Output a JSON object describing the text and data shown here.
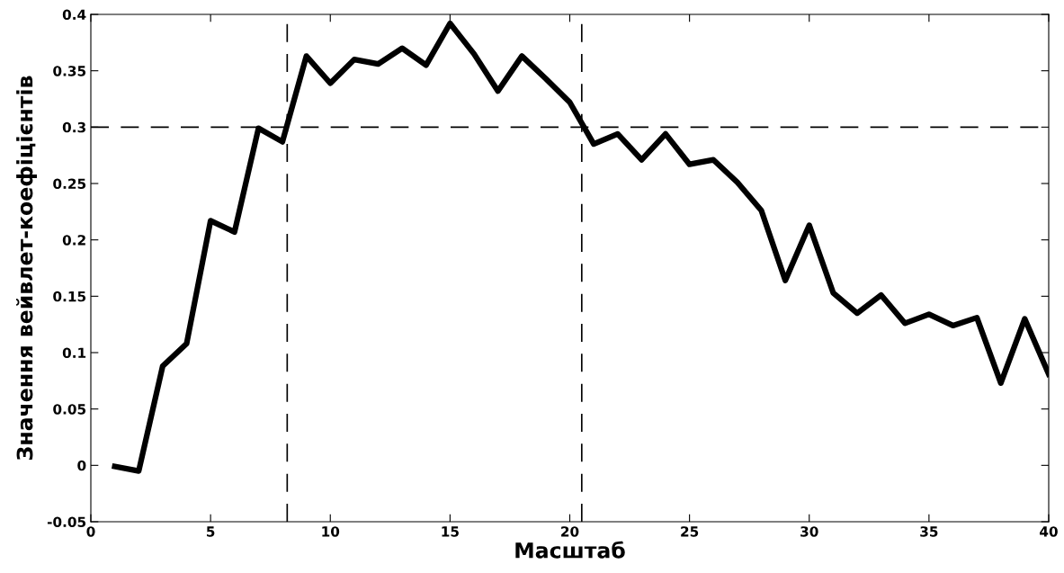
{
  "chart_data": {
    "type": "line",
    "xlabel": "Масштаб",
    "ylabel": "Значення вейвлет-коефіцієнтів",
    "x": [
      1,
      2,
      3,
      4,
      5,
      6,
      7,
      8,
      9,
      10,
      11,
      12,
      13,
      14,
      15,
      16,
      17,
      18,
      19,
      20,
      21,
      22,
      23,
      24,
      25,
      26,
      27,
      28,
      29,
      30,
      31,
      32,
      33,
      34,
      35,
      36,
      37,
      38,
      39,
      40
    ],
    "series": [
      {
        "color": "#000000",
        "values": [
          -0.001,
          -0.005,
          0.088,
          0.108,
          0.217,
          0.207,
          0.299,
          0.287,
          0.363,
          0.339,
          0.36,
          0.356,
          0.37,
          0.355,
          0.392,
          0.365,
          0.332,
          0.363,
          0.343,
          0.322,
          0.285,
          0.294,
          0.271,
          0.294,
          0.267,
          0.271,
          0.251,
          0.226,
          0.164,
          0.213,
          0.153,
          0.135,
          0.151,
          0.126,
          0.134,
          0.124,
          0.131,
          0.073,
          0.13,
          0.081
        ]
      }
    ],
    "xlim": [
      0,
      40
    ],
    "xticks": [
      0,
      5,
      10,
      15,
      20,
      25,
      30,
      35,
      40
    ],
    "ylim": [
      -0.05,
      0.4
    ],
    "yticks": [
      -0.05,
      0,
      0.05,
      0.1,
      0.15,
      0.2,
      0.25,
      0.3,
      0.35,
      0.4
    ],
    "ref_lines": [
      {
        "axis": "y",
        "value": 0.3,
        "color": "#000000",
        "line_style": "dashed"
      },
      {
        "axis": "x",
        "value": 8.2,
        "color": "#000000",
        "line_style": "dashed"
      },
      {
        "axis": "x",
        "value": 20.5,
        "color": "#000000",
        "line_style": "dashed"
      }
    ],
    "grid": false,
    "legend": false,
    "marker": "none",
    "line_style": "solid"
  }
}
